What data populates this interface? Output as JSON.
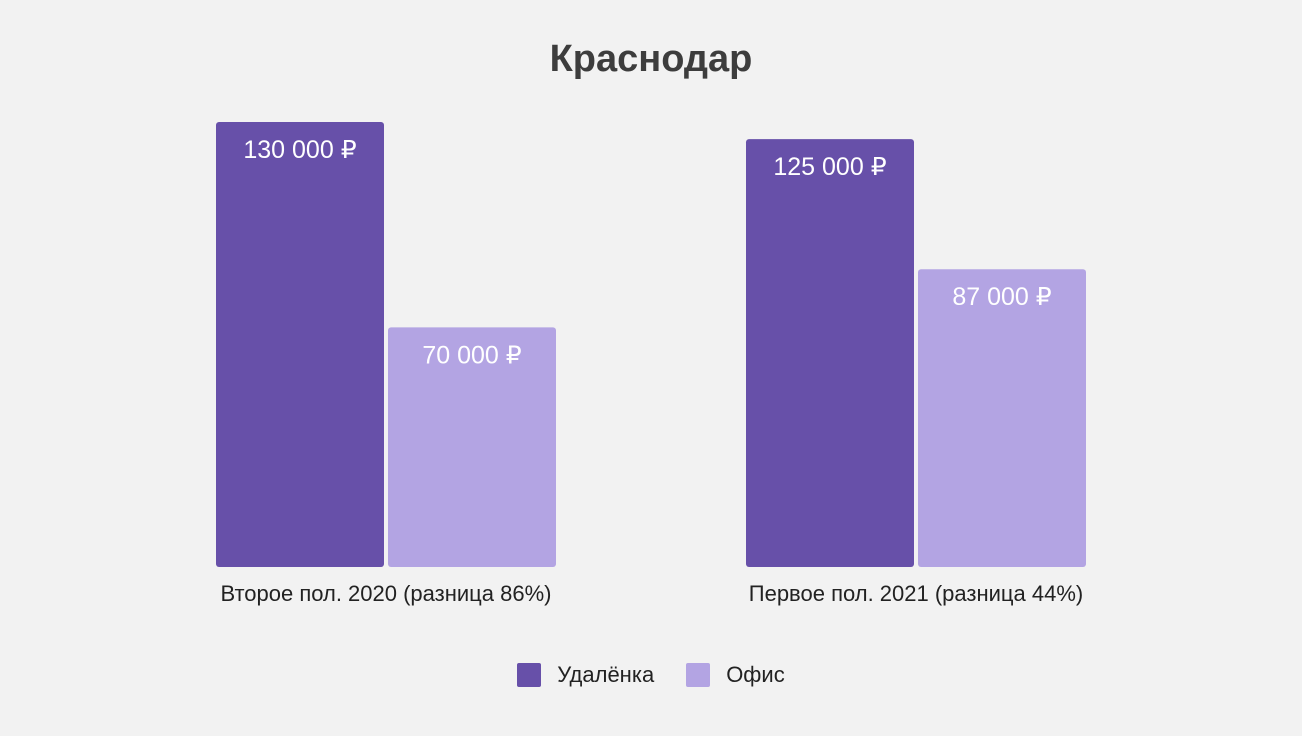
{
  "chart_data": {
    "type": "bar",
    "title": "Краснодар",
    "categories": [
      "Второе пол. 2020 (разница 86%)",
      "Первое пол. 2021 (разница 44%)"
    ],
    "series": [
      {
        "name": "Удалёнка",
        "color": "#6750a9",
        "values": [
          130000,
          125000
        ],
        "labels": [
          "130 000 ₽",
          "125 000 ₽"
        ]
      },
      {
        "name": "Офис",
        "color": "#b3a4e3",
        "values": [
          70000,
          87000
        ],
        "labels": [
          "70 000 ₽",
          "87 000 ₽"
        ]
      }
    ],
    "ylim": [
      0,
      130000
    ],
    "grid": false,
    "legend_position": "bottom"
  }
}
